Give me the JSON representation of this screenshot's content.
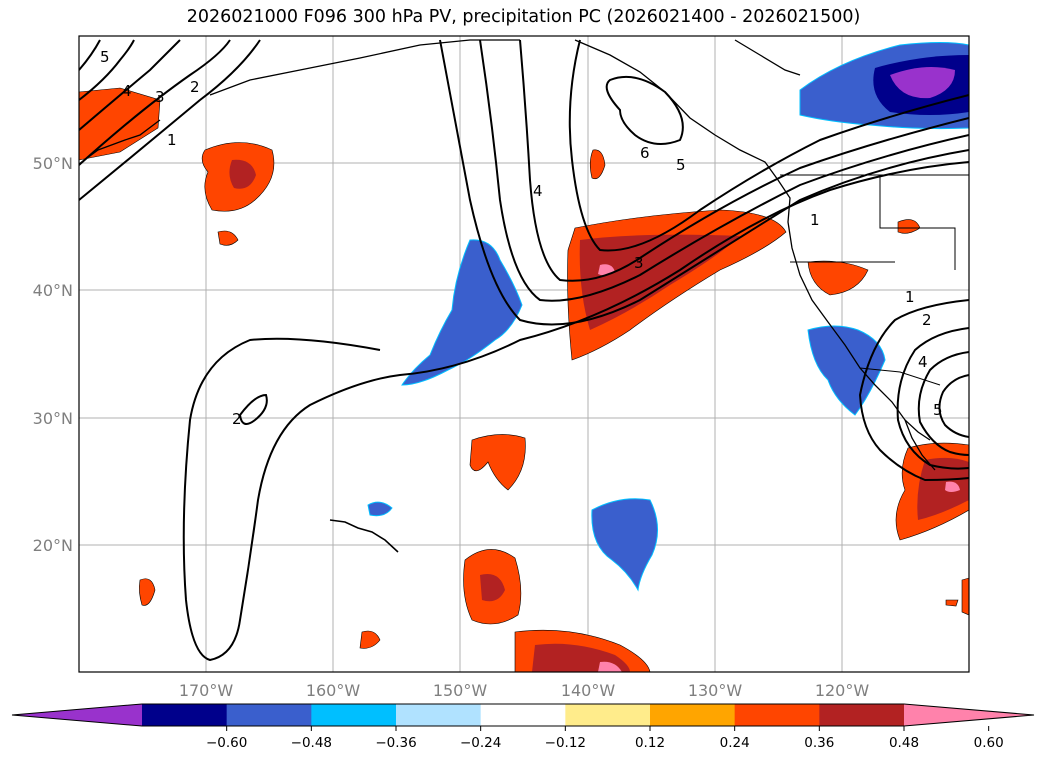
{
  "title": "2026021000 F096 300 hPa PV, precipitation PC (2026021400 - 2026021500)",
  "map": {
    "lat_labels": [
      "50°N",
      "40°N",
      "30°N",
      "20°N"
    ],
    "lon_labels": [
      "170°W",
      "160°W",
      "150°W",
      "140°W",
      "130°W",
      "120°W"
    ],
    "pv_contour_labels": [
      "5",
      "4",
      "3",
      "2",
      "1",
      "4",
      "6",
      "5",
      "3",
      "1",
      "1",
      "2",
      "4",
      "5",
      "2"
    ]
  },
  "colorbar": {
    "tick_labels": [
      "−0.60",
      "−0.48",
      "−0.36",
      "−0.24",
      "−0.12",
      "0.12",
      "0.24",
      "0.36",
      "0.48",
      "0.60"
    ],
    "colors": [
      "#9932cc",
      "#00008b",
      "#3a5fcd",
      "#00bfff",
      "#b0e2ff",
      "#ffffff",
      "#ffec8b",
      "#ffa500",
      "#ff4500",
      "#b22222",
      "#ff82ab"
    ]
  }
}
